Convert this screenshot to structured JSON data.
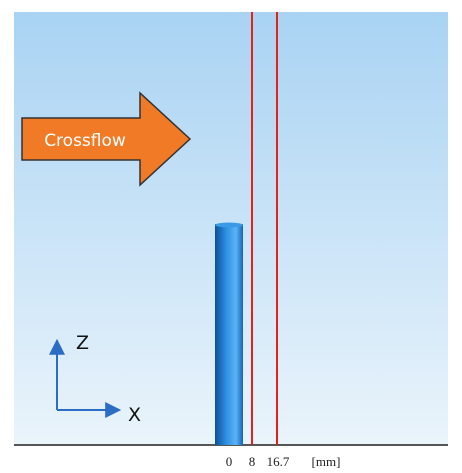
{
  "flow_label": "Crossflow",
  "axes": {
    "vertical": "Z",
    "horizontal": "X"
  },
  "scale": {
    "ticks": [
      "0",
      "8",
      "16.7"
    ],
    "unit": "[mm]"
  }
}
